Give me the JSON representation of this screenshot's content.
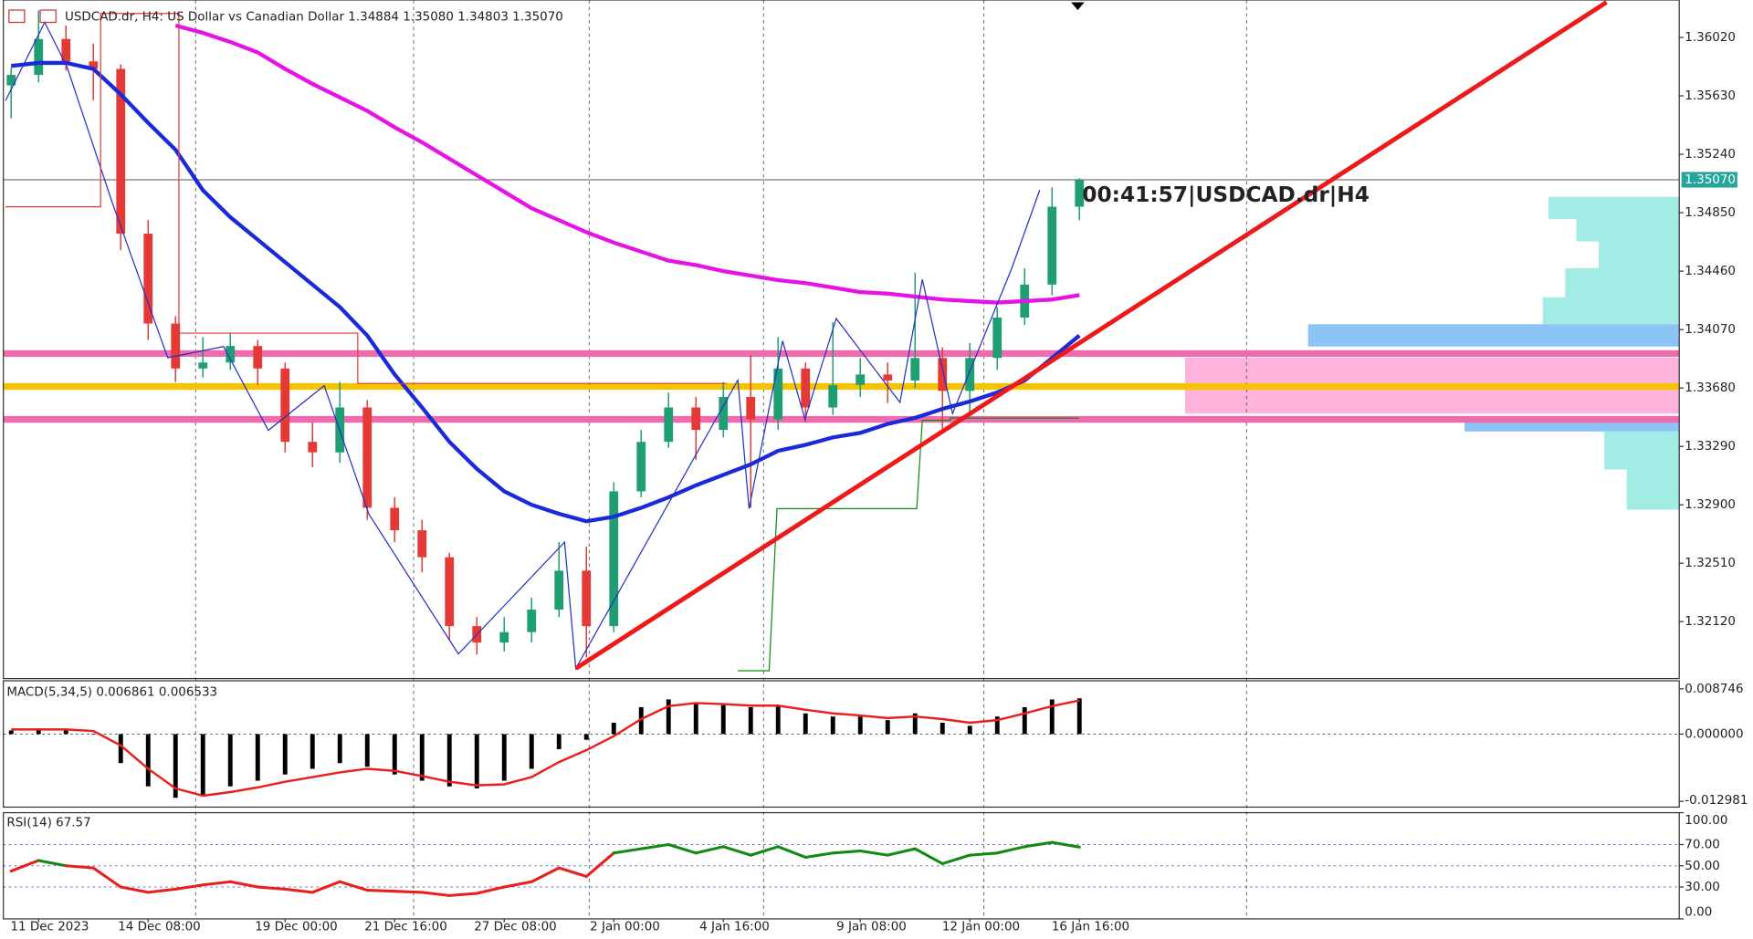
{
  "header": {
    "symbol_text": "USDCAD.dr, H4:  US Dollar vs Canadian Dollar  1.34884 1.35080 1.34803 1.35070",
    "timer": "00:41:57|USDCAD.dr|H4"
  },
  "chart_data": [
    {
      "type": "candlestick",
      "categories": [
        null,
        "11 Dec 2023",
        null,
        null,
        null,
        "14 Dec 08:00",
        null,
        null,
        null,
        null,
        "19 Dec 00:00",
        null,
        null,
        null,
        "21 Dec 16:00",
        null,
        null,
        null,
        "27 Dec 08:00",
        null,
        null,
        null,
        "2 Jan 00:00",
        null,
        null,
        null,
        "4 Jan 16:00",
        null,
        null,
        null,
        null,
        "9 Jan 08:00",
        null,
        null,
        null,
        "12 Jan 00:00",
        null,
        null,
        null,
        "16 Jan 16:00"
      ],
      "open": [
        1.357,
        1.3577,
        1.3601,
        1.3586,
        1.3581,
        1.3471,
        1.3411,
        1.3381,
        1.3385,
        1.3396,
        1.3381,
        1.3332,
        1.3325,
        1.3355,
        1.3288,
        1.3273,
        1.3255,
        1.3209,
        1.3198,
        1.3205,
        1.322,
        1.3246,
        1.3209,
        1.3299,
        1.3332,
        1.3355,
        1.334,
        1.3362,
        1.3347,
        1.3381,
        1.3355,
        1.337,
        1.3377,
        1.3373,
        1.3388,
        1.3366,
        1.3388,
        1.3415,
        1.3437,
        1.3489
      ],
      "high": [
        1.3582,
        1.362,
        1.361,
        1.3598,
        1.3584,
        1.348,
        1.3416,
        1.3402,
        1.3405,
        1.34,
        1.3385,
        1.3345,
        1.3372,
        1.336,
        1.3295,
        1.328,
        1.3258,
        1.3215,
        1.3215,
        1.3228,
        1.3265,
        1.3262,
        1.3305,
        1.334,
        1.3365,
        1.3362,
        1.3372,
        1.339,
        1.3402,
        1.3385,
        1.3412,
        1.3388,
        1.3385,
        1.3445,
        1.3395,
        1.3398,
        1.3422,
        1.3448,
        1.3502,
        1.3508
      ],
      "low": [
        1.3548,
        1.3572,
        1.358,
        1.356,
        1.346,
        1.34,
        1.3372,
        1.3375,
        1.338,
        1.337,
        1.3325,
        1.3315,
        1.3318,
        1.328,
        1.3265,
        1.3245,
        1.32,
        1.319,
        1.3192,
        1.3198,
        1.3215,
        1.3188,
        1.3205,
        1.3295,
        1.3328,
        1.332,
        1.3335,
        1.3288,
        1.334,
        1.3345,
        1.335,
        1.3362,
        1.3358,
        1.3368,
        1.3338,
        1.3352,
        1.338,
        1.341,
        1.343,
        1.348
      ],
      "close": [
        1.3577,
        1.3601,
        1.3586,
        1.3581,
        1.3471,
        1.3411,
        1.3381,
        1.3385,
        1.3396,
        1.3381,
        1.3332,
        1.3325,
        1.3355,
        1.3288,
        1.3273,
        1.3255,
        1.3209,
        1.3198,
        1.3205,
        1.322,
        1.3246,
        1.3209,
        1.3299,
        1.3332,
        1.3355,
        1.334,
        1.3362,
        1.3347,
        1.3381,
        1.3355,
        1.337,
        1.3377,
        1.3373,
        1.3388,
        1.3366,
        1.3388,
        1.3415,
        1.3437,
        1.3489,
        1.3507
      ],
      "up_color": "#1e9e72",
      "down_color": "#e53935",
      "ylim": [
        1.3174,
        1.3627
      ],
      "yticks": [
        {
          "value": 1.3602,
          "label": "1.36020"
        },
        {
          "value": 1.3563,
          "label": "1.35630"
        },
        {
          "value": 1.3524,
          "label": "1.35240"
        },
        {
          "value": 1.3485,
          "label": "1.34850"
        },
        {
          "value": 1.3446,
          "label": "1.34460"
        },
        {
          "value": 1.3407,
          "label": "1.34070"
        },
        {
          "value": 1.3368,
          "label": "1.33680"
        },
        {
          "value": 1.3329,
          "label": "1.33290"
        },
        {
          "value": 1.329,
          "label": "1.32900"
        },
        {
          "value": 1.3251,
          "label": "1.32510"
        },
        {
          "value": 1.3212,
          "label": "1.32120"
        }
      ],
      "last_price": {
        "value": 1.3507,
        "label": "1.35070"
      },
      "overlays": [
        {
          "color": "#1b2ad8",
          "values": [
            1.3583,
            1.3585,
            1.3585,
            1.3581,
            1.3564,
            1.3545,
            1.3527,
            1.35,
            1.3482,
            1.3467,
            1.3452,
            1.3437,
            1.3422,
            1.3403,
            1.3377,
            1.3355,
            1.3332,
            1.3314,
            1.3299,
            1.329,
            1.3284,
            1.3279,
            1.3282,
            1.3288,
            1.3295,
            1.3303,
            1.331,
            1.3317,
            1.3326,
            1.333,
            1.3335,
            1.3338,
            1.3344,
            1.3348,
            1.3354,
            1.3359,
            1.3365,
            1.3373,
            1.3388,
            1.3403
          ]
        },
        {
          "color": "#e612e6",
          "values": [
            null,
            null,
            null,
            null,
            null,
            null,
            1.361,
            1.3605,
            1.3599,
            1.3592,
            1.3581,
            1.3571,
            1.3562,
            1.3553,
            1.3542,
            1.3532,
            1.3521,
            1.351,
            1.3499,
            1.3488,
            1.348,
            1.3472,
            1.3465,
            1.3459,
            1.3453,
            1.345,
            1.3446,
            1.3443,
            1.344,
            1.3438,
            1.3435,
            1.3432,
            1.3431,
            1.3429,
            1.3427,
            1.3426,
            1.3425,
            1.3426,
            1.3427,
            1.343
          ]
        }
      ],
      "levels": [
        {
          "value": 1.3391,
          "color": "#f06aae"
        },
        {
          "value": 1.3369,
          "color": "#f5c400"
        },
        {
          "value": 1.3347,
          "color": "#f06aae"
        }
      ]
    },
    {
      "type": "macd",
      "label": "MACD(5,34,5) 0.006861 0.006533",
      "values": [
        0.0007,
        0.0011,
        0.0007,
        0,
        -0.0056,
        -0.0101,
        -0.0123,
        -0.0119,
        -0.0101,
        -0.009,
        -0.0078,
        -0.0067,
        -0.0056,
        -0.0063,
        -0.0078,
        -0.009,
        -0.0101,
        -0.0105,
        -0.009,
        -0.0067,
        -0.0029,
        -0.0011,
        0.0022,
        0.0052,
        0.0067,
        0.006,
        0.0056,
        0.0052,
        0.0056,
        0.004,
        0.0034,
        0.0034,
        0.0027,
        0.004,
        0.0022,
        0.0016,
        0.0034,
        0.0052,
        0.0067,
        0.0069
      ],
      "signal": [
        0.0009,
        0.0009,
        0.0009,
        0.0006,
        -0.0022,
        -0.0067,
        -0.0105,
        -0.0119,
        -0.0112,
        -0.0103,
        -0.0092,
        -0.0083,
        -0.0074,
        -0.0067,
        -0.0071,
        -0.0081,
        -0.0092,
        -0.0099,
        -0.0097,
        -0.0083,
        -0.0054,
        -0.0031,
        -0.0004,
        0.0029,
        0.0054,
        0.006,
        0.0058,
        0.0055,
        0.0055,
        0.0047,
        0.004,
        0.0036,
        0.0031,
        0.0034,
        0.0029,
        0.0022,
        0.0027,
        0.004,
        0.0054,
        0.0065
      ],
      "bar_color": "#000000",
      "signal_color": "#e8201c",
      "ylim": [
        -0.0141,
        0.0103
      ],
      "yticks": [
        0.008746,
        {
          "value": 0,
          "label": "0.000000"
        },
        -0.012981
      ]
    },
    {
      "type": "rsi",
      "label": "RSI(14) 67.57",
      "values": [
        45,
        55,
        50,
        48,
        30,
        25,
        28,
        32,
        35,
        30,
        28,
        25,
        35,
        27,
        26,
        25,
        22,
        24,
        30,
        35,
        48,
        40,
        62,
        66,
        70,
        62,
        68,
        60,
        68,
        58,
        62,
        64,
        60,
        66,
        52,
        60,
        62,
        68,
        72,
        67.57
      ],
      "above_color": "#128a12",
      "below_color": "#e8201c",
      "ylim": [
        0,
        100
      ],
      "yticks": [
        {
          "value": 100,
          "label": "100.00"
        },
        {
          "value": 70,
          "label": "70.00"
        },
        {
          "value": 50,
          "label": "50.00"
        },
        {
          "value": 30,
          "label": "30.00"
        },
        {
          "value": 0,
          "label": "0.00"
        }
      ]
    }
  ]
}
